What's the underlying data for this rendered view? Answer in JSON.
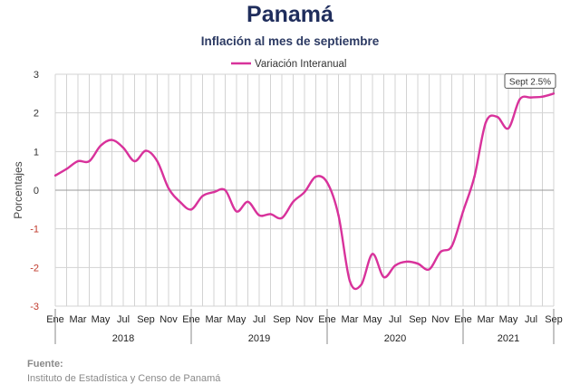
{
  "header": {
    "title": "Panamá",
    "subtitle": "Inflación al mes de septiembre"
  },
  "footer": {
    "label": "Fuente:",
    "source": "Instituto de Estadística y Censo de Panamá"
  },
  "colors": {
    "line": "#d8329b",
    "grid": "#d3d3d3",
    "zero": "#9a9a9a",
    "negative_tick": "#c0392b",
    "axis_text": "#333333"
  },
  "chart_data": {
    "type": "line",
    "ylabel": "Porcentajes",
    "ylim": [
      -3,
      3
    ],
    "yticks": [
      3,
      2,
      1,
      0,
      -1,
      -2,
      -3
    ],
    "grid": true,
    "legend_position": "top-center",
    "month_labels": [
      "Ene",
      "Mar",
      "May",
      "Jul",
      "Sep",
      "Nov",
      "Ene",
      "Mar",
      "May",
      "Jul",
      "Sep",
      "Nov",
      "Ene",
      "Mar",
      "May",
      "Jul",
      "Sep",
      "Nov",
      "Ene",
      "Mar",
      "May",
      "Jul",
      "Sep"
    ],
    "years": [
      "2018",
      "2019",
      "2020",
      "2021"
    ],
    "annotation": "Sept 2.5%",
    "series": [
      {
        "name": "Variación Interanual",
        "x": [
          "2018-01",
          "2018-02",
          "2018-03",
          "2018-04",
          "2018-05",
          "2018-06",
          "2018-07",
          "2018-08",
          "2018-09",
          "2018-10",
          "2018-11",
          "2018-12",
          "2019-01",
          "2019-02",
          "2019-03",
          "2019-04",
          "2019-05",
          "2019-06",
          "2019-07",
          "2019-08",
          "2019-09",
          "2019-10",
          "2019-11",
          "2019-12",
          "2020-01",
          "2020-02",
          "2020-03",
          "2020-04",
          "2020-05",
          "2020-06",
          "2020-07",
          "2020-08",
          "2020-09",
          "2020-10",
          "2020-11",
          "2020-12",
          "2021-01",
          "2021-02",
          "2021-03",
          "2021-04",
          "2021-05",
          "2021-06",
          "2021-07",
          "2021-08",
          "2021-09"
        ],
        "values": [
          0.38,
          0.55,
          0.75,
          0.75,
          1.15,
          1.3,
          1.1,
          0.75,
          1.02,
          0.75,
          0.05,
          -0.3,
          -0.5,
          -0.15,
          -0.05,
          0.0,
          -0.55,
          -0.3,
          -0.65,
          -0.62,
          -0.72,
          -0.3,
          -0.05,
          0.35,
          0.2,
          -0.65,
          -2.35,
          -2.45,
          -1.65,
          -2.25,
          -1.95,
          -1.85,
          -1.9,
          -2.05,
          -1.6,
          -1.45,
          -0.55,
          0.35,
          1.75,
          1.9,
          1.6,
          2.35,
          2.4,
          2.42,
          2.5
        ]
      }
    ]
  }
}
